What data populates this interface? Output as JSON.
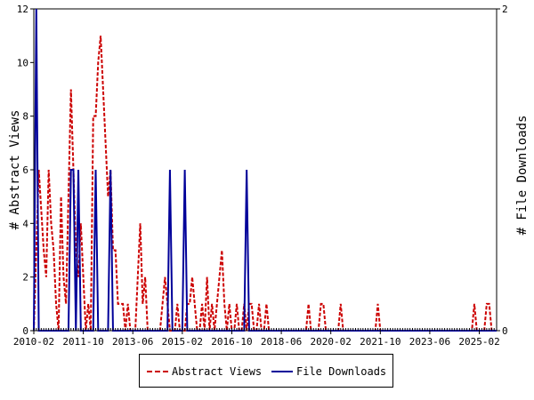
{
  "chart_data": {
    "type": "line",
    "ylabel_left": "# Abstract Views",
    "ylabel_right": "# File Downloads",
    "x_ticks": [
      "2010-02",
      "2011-10",
      "2013-06",
      "2015-02",
      "2016-10",
      "2018-06",
      "2020-02",
      "2021-10",
      "2023-06",
      "2025-02"
    ],
    "x_range": [
      "2010-02",
      "2025-09"
    ],
    "y_left_ticks": [
      "0",
      "2",
      "4",
      "6",
      "8",
      "10",
      "12"
    ],
    "y_left_range": [
      0,
      12
    ],
    "y_right_ticks": [
      "0",
      "2"
    ],
    "y_right_range": [
      0,
      2
    ],
    "grid": false,
    "legend_position": "bottom",
    "series": [
      {
        "name": "Abstract Views",
        "axis": "left",
        "color": "#cc0000",
        "dash": "dashed",
        "points": [
          [
            "2010-02",
            0
          ],
          [
            "2010-04",
            6
          ],
          [
            "2010-06",
            3
          ],
          [
            "2010-07",
            2
          ],
          [
            "2010-08",
            6
          ],
          [
            "2010-09",
            4
          ],
          [
            "2010-10",
            3
          ],
          [
            "2010-11",
            1
          ],
          [
            "2010-12",
            0
          ],
          [
            "2011-01",
            5
          ],
          [
            "2011-02",
            2
          ],
          [
            "2011-03",
            1
          ],
          [
            "2011-04",
            5
          ],
          [
            "2011-05",
            9
          ],
          [
            "2011-06",
            6
          ],
          [
            "2011-07",
            3
          ],
          [
            "2011-08",
            2
          ],
          [
            "2011-09",
            4
          ],
          [
            "2011-10",
            2
          ],
          [
            "2011-11",
            0
          ],
          [
            "2011-12",
            1
          ],
          [
            "2012-01",
            0
          ],
          [
            "2012-02",
            8
          ],
          [
            "2012-03",
            8
          ],
          [
            "2012-04",
            10
          ],
          [
            "2012-05",
            11
          ],
          [
            "2012-06",
            9
          ],
          [
            "2012-07",
            7
          ],
          [
            "2012-08",
            5
          ],
          [
            "2012-09",
            6
          ],
          [
            "2012-10",
            3
          ],
          [
            "2012-11",
            3
          ],
          [
            "2012-12",
            1
          ],
          [
            "2013-01",
            1
          ],
          [
            "2013-02",
            1
          ],
          [
            "2013-03",
            0
          ],
          [
            "2013-04",
            1
          ],
          [
            "2013-05",
            0
          ],
          [
            "2013-06",
            0
          ],
          [
            "2013-07",
            0
          ],
          [
            "2013-08",
            2
          ],
          [
            "2013-09",
            4
          ],
          [
            "2013-10",
            1
          ],
          [
            "2013-11",
            2
          ],
          [
            "2013-12",
            0
          ],
          [
            "2014-01",
            0
          ],
          [
            "2014-02",
            0
          ],
          [
            "2014-03",
            0
          ],
          [
            "2014-04",
            0
          ],
          [
            "2014-05",
            0
          ],
          [
            "2014-06",
            1
          ],
          [
            "2014-07",
            2
          ],
          [
            "2014-08",
            1
          ],
          [
            "2014-09",
            0
          ],
          [
            "2014-10",
            0
          ],
          [
            "2014-11",
            0
          ],
          [
            "2014-12",
            1
          ],
          [
            "2015-01",
            0
          ],
          [
            "2015-02",
            0
          ],
          [
            "2015-03",
            0
          ],
          [
            "2015-04",
            1
          ],
          [
            "2015-05",
            1
          ],
          [
            "2015-06",
            2
          ],
          [
            "2015-07",
            1
          ],
          [
            "2015-08",
            0
          ],
          [
            "2015-09",
            0
          ],
          [
            "2015-10",
            1
          ],
          [
            "2015-11",
            0
          ],
          [
            "2015-12",
            2
          ],
          [
            "2016-01",
            0
          ],
          [
            "2016-02",
            1
          ],
          [
            "2016-03",
            0
          ],
          [
            "2016-04",
            1
          ],
          [
            "2016-05",
            2
          ],
          [
            "2016-06",
            3
          ],
          [
            "2016-07",
            1
          ],
          [
            "2016-08",
            0
          ],
          [
            "2016-09",
            1
          ],
          [
            "2016-10",
            0
          ],
          [
            "2016-11",
            0
          ],
          [
            "2016-12",
            1
          ],
          [
            "2017-01",
            0
          ],
          [
            "2017-02",
            0
          ],
          [
            "2017-03",
            1
          ],
          [
            "2017-04",
            0
          ],
          [
            "2017-05",
            1
          ],
          [
            "2017-06",
            1
          ],
          [
            "2017-07",
            0
          ],
          [
            "2017-08",
            0
          ],
          [
            "2017-09",
            1
          ],
          [
            "2017-10",
            0
          ],
          [
            "2017-11",
            0
          ],
          [
            "2017-12",
            1
          ],
          [
            "2018-01",
            0
          ],
          [
            "2019-04",
            0
          ],
          [
            "2019-05",
            1
          ],
          [
            "2019-06",
            0
          ],
          [
            "2019-07",
            0
          ],
          [
            "2019-08",
            0
          ],
          [
            "2019-09",
            0
          ],
          [
            "2019-10",
            1
          ],
          [
            "2019-11",
            1
          ],
          [
            "2019-12",
            0
          ],
          [
            "2020-05",
            0
          ],
          [
            "2020-06",
            1
          ],
          [
            "2020-07",
            0
          ],
          [
            "2021-08",
            0
          ],
          [
            "2021-09",
            1
          ],
          [
            "2021-10",
            0
          ],
          [
            "2024-11",
            0
          ],
          [
            "2024-12",
            1
          ],
          [
            "2025-01",
            0
          ],
          [
            "2025-04",
            0
          ],
          [
            "2025-05",
            1
          ],
          [
            "2025-06",
            1
          ],
          [
            "2025-07",
            0
          ],
          [
            "2025-09",
            0
          ]
        ]
      },
      {
        "name": "File Downloads",
        "axis": "right",
        "color": "#000099",
        "dash": "solid",
        "points": [
          [
            "2010-02",
            0
          ],
          [
            "2010-03",
            2
          ],
          [
            "2010-04",
            0
          ],
          [
            "2011-04",
            0
          ],
          [
            "2011-05",
            1
          ],
          [
            "2011-06",
            1
          ],
          [
            "2011-07",
            0
          ],
          [
            "2011-08",
            1
          ],
          [
            "2011-09",
            0
          ],
          [
            "2012-02",
            0
          ],
          [
            "2012-03",
            1
          ],
          [
            "2012-04",
            0
          ],
          [
            "2012-08",
            0
          ],
          [
            "2012-09",
            1
          ],
          [
            "2012-10",
            0
          ],
          [
            "2014-08",
            0
          ],
          [
            "2014-09",
            1
          ],
          [
            "2014-10",
            0
          ],
          [
            "2015-02",
            0
          ],
          [
            "2015-03",
            1
          ],
          [
            "2015-04",
            0
          ],
          [
            "2017-03",
            0
          ],
          [
            "2017-04",
            1
          ],
          [
            "2017-05",
            0
          ],
          [
            "2025-09",
            0
          ]
        ]
      }
    ]
  }
}
